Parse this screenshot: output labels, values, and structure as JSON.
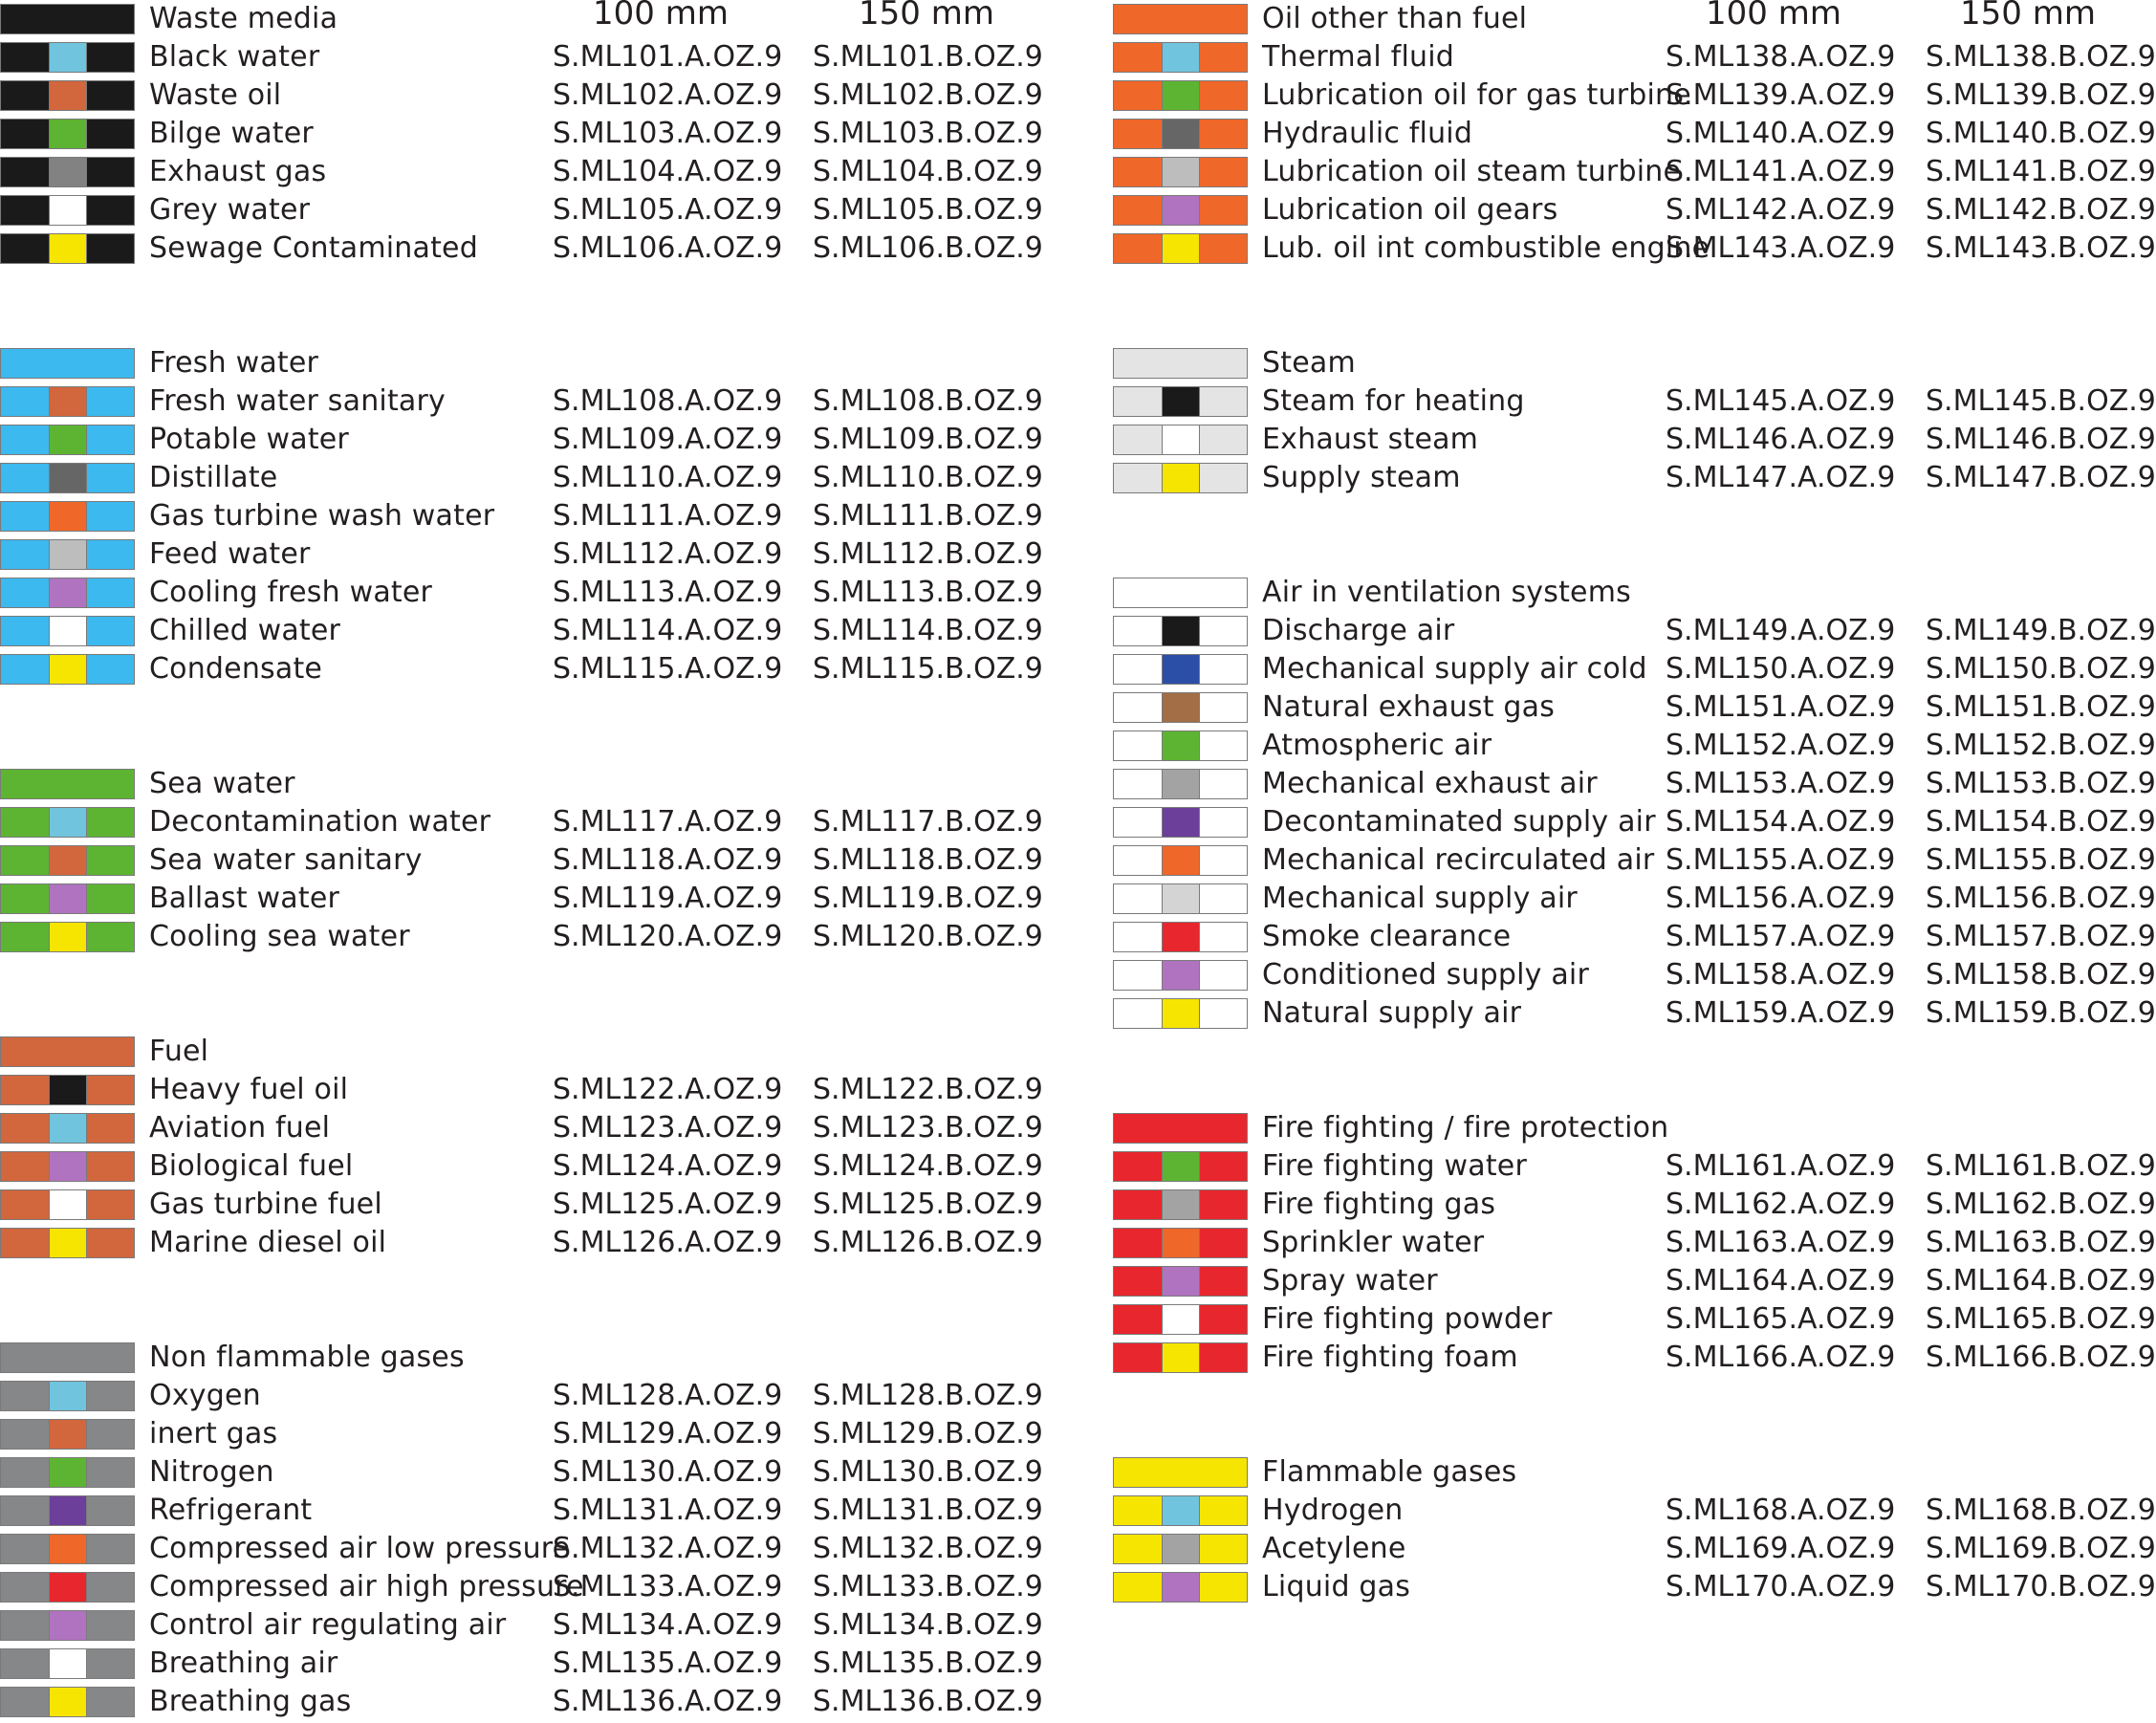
{
  "colors": {
    "black": "#1a1a1a",
    "orange": "#f0672a",
    "lightblue": "#3cb9ee",
    "cyan": "#70c4de",
    "brown": "#d2663d",
    "green": "#5db432",
    "grey": "#828282",
    "white": "#ffffff",
    "yellow": "#f6e500",
    "darkgrey": "#666666",
    "silver": "#bdbdbd",
    "lilac": "#b073c0",
    "steamgrey": "#e4e4e4",
    "navy": "#2b4ea6",
    "tan": "#a36e45",
    "silver2": "#a3a3a3",
    "purple": "#6c3f9a",
    "red": "#e8262d",
    "lightgrey": "#d4d4d4",
    "gasgrey": "#868789"
  },
  "headers": {
    "size_a": "100 mm",
    "size_b": "150 mm"
  },
  "left": [
    {
      "label": "Waste media",
      "base": "black",
      "stripe": null,
      "a": "",
      "b": "",
      "header": true
    },
    {
      "label": "Black water",
      "base": "black",
      "stripe": "cyan",
      "a": "S.ML101.A.OZ.9",
      "b": "S.ML101.B.OZ.9"
    },
    {
      "label": "Waste oil",
      "base": "black",
      "stripe": "brown",
      "a": "S.ML102.A.OZ.9",
      "b": "S.ML102.B.OZ.9"
    },
    {
      "label": "Bilge water",
      "base": "black",
      "stripe": "green",
      "a": "S.ML103.A.OZ.9",
      "b": "S.ML103.B.OZ.9"
    },
    {
      "label": "Exhaust gas",
      "base": "black",
      "stripe": "grey",
      "a": "S.ML104.A.OZ.9",
      "b": "S.ML104.B.OZ.9"
    },
    {
      "label": "Grey water",
      "base": "black",
      "stripe": "white",
      "a": "S.ML105.A.OZ.9",
      "b": "S.ML105.B.OZ.9"
    },
    {
      "label": "Sewage Contaminated",
      "base": "black",
      "stripe": "yellow",
      "a": "S.ML106.A.OZ.9",
      "b": "S.ML106.B.OZ.9"
    },
    {
      "gap": true
    },
    {
      "gap": true
    },
    {
      "label": "Fresh water",
      "base": "lightblue",
      "stripe": null,
      "a": "",
      "b": ""
    },
    {
      "label": "Fresh water sanitary",
      "base": "lightblue",
      "stripe": "brown",
      "a": "S.ML108.A.OZ.9",
      "b": "S.ML108.B.OZ.9"
    },
    {
      "label": "Potable water",
      "base": "lightblue",
      "stripe": "green",
      "a": "S.ML109.A.OZ.9",
      "b": "S.ML109.B.OZ.9"
    },
    {
      "label": "Distillate",
      "base": "lightblue",
      "stripe": "darkgrey",
      "a": "S.ML110.A.OZ.9",
      "b": "S.ML110.B.OZ.9"
    },
    {
      "label": "Gas turbine wash water",
      "base": "lightblue",
      "stripe": "orange",
      "a": "S.ML111.A.OZ.9",
      "b": "S.ML111.B.OZ.9"
    },
    {
      "label": "Feed water",
      "base": "lightblue",
      "stripe": "silver",
      "a": "S.ML112.A.OZ.9",
      "b": "S.ML112.B.OZ.9"
    },
    {
      "label": "Cooling fresh water",
      "base": "lightblue",
      "stripe": "lilac",
      "a": "S.ML113.A.OZ.9",
      "b": "S.ML113.B.OZ.9"
    },
    {
      "label": "Chilled water",
      "base": "lightblue",
      "stripe": "white",
      "a": "S.ML114.A.OZ.9",
      "b": "S.ML114.B.OZ.9"
    },
    {
      "label": "Condensate",
      "base": "lightblue",
      "stripe": "yellow",
      "a": "S.ML115.A.OZ.9",
      "b": "S.ML115.B.OZ.9"
    },
    {
      "gap": true
    },
    {
      "gap": true
    },
    {
      "label": "Sea water",
      "base": "green",
      "stripe": null,
      "a": "",
      "b": ""
    },
    {
      "label": "Decontamination water",
      "base": "green",
      "stripe": "cyan",
      "a": "S.ML117.A.OZ.9",
      "b": "S.ML117.B.OZ.9"
    },
    {
      "label": "Sea water sanitary",
      "base": "green",
      "stripe": "brown",
      "a": "S.ML118.A.OZ.9",
      "b": "S.ML118.B.OZ.9"
    },
    {
      "label": "Ballast water",
      "base": "green",
      "stripe": "lilac",
      "a": "S.ML119.A.OZ.9",
      "b": "S.ML119.B.OZ.9"
    },
    {
      "label": "Cooling sea water",
      "base": "green",
      "stripe": "yellow",
      "a": "S.ML120.A.OZ.9",
      "b": "S.ML120.B.OZ.9"
    },
    {
      "gap": true
    },
    {
      "gap": true
    },
    {
      "label": "Fuel",
      "base": "brown",
      "stripe": null,
      "a": "",
      "b": ""
    },
    {
      "label": "Heavy fuel oil",
      "base": "brown",
      "stripe": "black",
      "a": "S.ML122.A.OZ.9",
      "b": "S.ML122.B.OZ.9"
    },
    {
      "label": "Aviation fuel",
      "base": "brown",
      "stripe": "cyan",
      "a": "S.ML123.A.OZ.9",
      "b": "S.ML123.B.OZ.9"
    },
    {
      "label": "Biological fuel",
      "base": "brown",
      "stripe": "lilac",
      "a": "S.ML124.A.OZ.9",
      "b": "S.ML124.B.OZ.9"
    },
    {
      "label": "Gas turbine fuel",
      "base": "brown",
      "stripe": "white",
      "a": "S.ML125.A.OZ.9",
      "b": "S.ML125.B.OZ.9"
    },
    {
      "label": "Marine diesel oil",
      "base": "brown",
      "stripe": "yellow",
      "a": "S.ML126.A.OZ.9",
      "b": "S.ML126.B.OZ.9"
    },
    {
      "gap": true
    },
    {
      "gap": true
    },
    {
      "label": "Non flammable gases",
      "base": "gasgrey",
      "stripe": null,
      "a": "",
      "b": ""
    },
    {
      "label": "Oxygen",
      "base": "gasgrey",
      "stripe": "cyan",
      "a": "S.ML128.A.OZ.9",
      "b": "S.ML128.B.OZ.9"
    },
    {
      "label": "inert gas",
      "base": "gasgrey",
      "stripe": "brown",
      "a": "S.ML129.A.OZ.9",
      "b": "S.ML129.B.OZ.9"
    },
    {
      "label": "Nitrogen",
      "base": "gasgrey",
      "stripe": "green",
      "a": "S.ML130.A.OZ.9",
      "b": "S.ML130.B.OZ.9"
    },
    {
      "label": "Refrigerant",
      "base": "gasgrey",
      "stripe": "purple",
      "a": "S.ML131.A.OZ.9",
      "b": "S.ML131.B.OZ.9"
    },
    {
      "label": "Compressed air low pressure",
      "base": "gasgrey",
      "stripe": "orange",
      "a": "S.ML132.A.OZ.9",
      "b": "S.ML132.B.OZ.9"
    },
    {
      "label": "Compressed air high pressure",
      "base": "gasgrey",
      "stripe": "red",
      "a": "S.ML133.A.OZ.9",
      "b": "S.ML133.B.OZ.9"
    },
    {
      "label": "Control air regulating air",
      "base": "gasgrey",
      "stripe": "lilac",
      "a": "S.ML134.A.OZ.9",
      "b": "S.ML134.B.OZ.9"
    },
    {
      "label": "Breathing air",
      "base": "gasgrey",
      "stripe": "white",
      "a": "S.ML135.A.OZ.9",
      "b": "S.ML135.B.OZ.9"
    },
    {
      "label": "Breathing gas",
      "base": "gasgrey",
      "stripe": "yellow",
      "a": "S.ML136.A.OZ.9",
      "b": "S.ML136.B.OZ.9"
    }
  ],
  "right": [
    {
      "label": "Oil other than fuel",
      "base": "orange",
      "stripe": null,
      "a": "",
      "b": "",
      "header": true
    },
    {
      "label": "Thermal fluid",
      "base": "orange",
      "stripe": "cyan",
      "a": "S.ML138.A.OZ.9",
      "b": "S.ML138.B.OZ.9"
    },
    {
      "label": "Lubrication oil for gas turbine",
      "base": "orange",
      "stripe": "green",
      "a": "S.ML139.A.OZ.9",
      "b": "S.ML139.B.OZ.9"
    },
    {
      "label": "Hydraulic fluid",
      "base": "orange",
      "stripe": "darkgrey",
      "a": "S.ML140.A.OZ.9",
      "b": "S.ML140.B.OZ.9"
    },
    {
      "label": "Lubrication oil steam turbine",
      "base": "orange",
      "stripe": "silver",
      "a": "S.ML141.A.OZ.9",
      "b": "S.ML141.B.OZ.9"
    },
    {
      "label": "Lubrication oil gears",
      "base": "orange",
      "stripe": "lilac",
      "a": "S.ML142.A.OZ.9",
      "b": "S.ML142.B.OZ.9"
    },
    {
      "label": "Lub. oil int combustible engine",
      "base": "orange",
      "stripe": "yellow",
      "a": "S.ML143.A.OZ.9",
      "b": "S.ML143.B.OZ.9"
    },
    {
      "gap": true
    },
    {
      "gap": true
    },
    {
      "label": "Steam",
      "base": "steamgrey",
      "stripe": null,
      "a": "",
      "b": ""
    },
    {
      "label": "Steam for heating",
      "base": "steamgrey",
      "stripe": "black",
      "a": "S.ML145.A.OZ.9",
      "b": "S.ML145.B.OZ.9"
    },
    {
      "label": "Exhaust steam",
      "base": "steamgrey",
      "stripe": "white",
      "a": "S.ML146.A.OZ.9",
      "b": "S.ML146.B.OZ.9"
    },
    {
      "label": "Supply steam",
      "base": "steamgrey",
      "stripe": "yellow",
      "a": "S.ML147.A.OZ.9",
      "b": "S.ML147.B.OZ.9"
    },
    {
      "gap": true
    },
    {
      "gap": true
    },
    {
      "label": "Air in ventilation systems",
      "base": "white",
      "stripe": null,
      "a": "",
      "b": ""
    },
    {
      "label": "Discharge air",
      "base": "white",
      "stripe": "black",
      "a": "S.ML149.A.OZ.9",
      "b": "S.ML149.B.OZ.9"
    },
    {
      "label": "Mechanical supply air cold",
      "base": "white",
      "stripe": "navy",
      "a": "S.ML150.A.OZ.9",
      "b": "S.ML150.B.OZ.9"
    },
    {
      "label": "Natural exhaust gas",
      "base": "white",
      "stripe": "tan",
      "a": "S.ML151.A.OZ.9",
      "b": "S.ML151.B.OZ.9"
    },
    {
      "label": "Atmospheric air",
      "base": "white",
      "stripe": "green",
      "a": "S.ML152.A.OZ.9",
      "b": "S.ML152.B.OZ.9"
    },
    {
      "label": "Mechanical exhaust air",
      "base": "white",
      "stripe": "silver2",
      "a": "S.ML153.A.OZ.9",
      "b": "S.ML153.B.OZ.9"
    },
    {
      "label": "Decontaminated supply air",
      "base": "white",
      "stripe": "purple",
      "a": "S.ML154.A.OZ.9",
      "b": "S.ML154.B.OZ.9"
    },
    {
      "label": "Mechanical recirculated air",
      "base": "white",
      "stripe": "orange",
      "a": "S.ML155.A.OZ.9",
      "b": "S.ML155.B.OZ.9"
    },
    {
      "label": "Mechanical supply air",
      "base": "white",
      "stripe": "lightgrey",
      "a": "S.ML156.A.OZ.9",
      "b": "S.ML156.B.OZ.9"
    },
    {
      "label": "Smoke clearance",
      "base": "white",
      "stripe": "red",
      "a": "S.ML157.A.OZ.9",
      "b": "S.ML157.B.OZ.9"
    },
    {
      "label": "Conditioned supply air",
      "base": "white",
      "stripe": "lilac",
      "a": "S.ML158.A.OZ.9",
      "b": "S.ML158.B.OZ.9"
    },
    {
      "label": "Natural supply air",
      "base": "white",
      "stripe": "yellow",
      "a": "S.ML159.A.OZ.9",
      "b": "S.ML159.B.OZ.9"
    },
    {
      "gap": true
    },
    {
      "gap": true
    },
    {
      "label": "Fire fighting / fire protection",
      "base": "red",
      "stripe": null,
      "a": "",
      "b": ""
    },
    {
      "label": "Fire fighting water",
      "base": "red",
      "stripe": "green",
      "a": "S.ML161.A.OZ.9",
      "b": "S.ML161.B.OZ.9"
    },
    {
      "label": "Fire fighting gas",
      "base": "red",
      "stripe": "silver2",
      "a": "S.ML162.A.OZ.9",
      "b": "S.ML162.B.OZ.9"
    },
    {
      "label": "Sprinkler water",
      "base": "red",
      "stripe": "orange",
      "a": "S.ML163.A.OZ.9",
      "b": "S.ML163.B.OZ.9"
    },
    {
      "label": "Spray water",
      "base": "red",
      "stripe": "lilac",
      "a": "S.ML164.A.OZ.9",
      "b": "S.ML164.B.OZ.9"
    },
    {
      "label": "Fire fighting powder",
      "base": "red",
      "stripe": "white",
      "a": "S.ML165.A.OZ.9",
      "b": "S.ML165.B.OZ.9"
    },
    {
      "label": "Fire fighting foam",
      "base": "red",
      "stripe": "yellow",
      "a": "S.ML166.A.OZ.9",
      "b": "S.ML166.B.OZ.9"
    },
    {
      "gap": true
    },
    {
      "gap": true
    },
    {
      "label": "Flammable gases",
      "base": "yellow",
      "stripe": null,
      "a": "",
      "b": ""
    },
    {
      "label": "Hydrogen",
      "base": "yellow",
      "stripe": "cyan",
      "a": "S.ML168.A.OZ.9",
      "b": "S.ML168.B.OZ.9"
    },
    {
      "label": "Acetylene",
      "base": "yellow",
      "stripe": "silver2",
      "a": "S.ML169.A.OZ.9",
      "b": "S.ML169.B.OZ.9"
    },
    {
      "label": "Liquid gas",
      "base": "yellow",
      "stripe": "lilac",
      "a": "S.ML170.A.OZ.9",
      "b": "S.ML170.B.OZ.9"
    }
  ]
}
